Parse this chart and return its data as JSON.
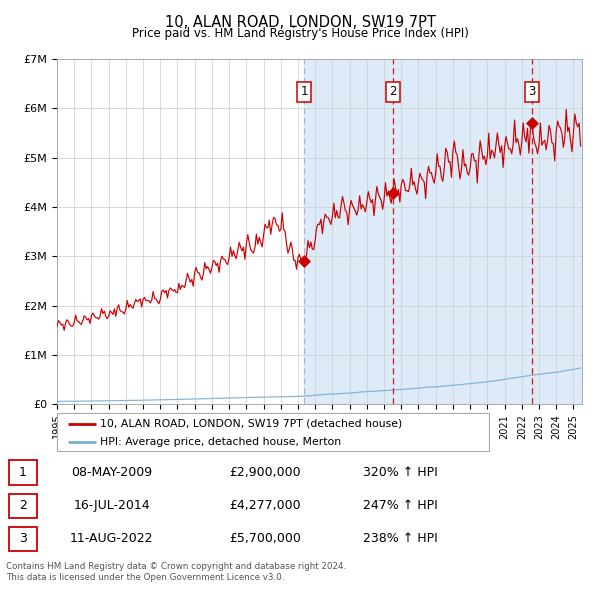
{
  "title": "10, ALAN ROAD, LONDON, SW19 7PT",
  "subtitle": "Price paid vs. HM Land Registry's House Price Index (HPI)",
  "ylabel_ticks": [
    "£0",
    "£1M",
    "£2M",
    "£3M",
    "£4M",
    "£5M",
    "£6M",
    "£7M"
  ],
  "ylim": [
    0,
    7000000
  ],
  "xlim_start": 1995,
  "xlim_end": 2025.5,
  "sale_color": "#cc0000",
  "hpi_color": "#7bafd4",
  "shade_color": "#ddeaf7",
  "grid_color": "#cccccc",
  "bg_color": "#ffffff",
  "transactions": [
    {
      "label": "1",
      "date": 2009.35,
      "price": 2900000,
      "date_str": "08-MAY-2009",
      "pct": "320%",
      "direction": "↑"
    },
    {
      "label": "2",
      "date": 2014.54,
      "price": 4277000,
      "date_str": "16-JUL-2014",
      "pct": "247%",
      "direction": "↑"
    },
    {
      "label": "3",
      "date": 2022.6,
      "price": 5700000,
      "date_str": "11-AUG-2022",
      "pct": "238%",
      "direction": "↑"
    }
  ],
  "legend_line1": "10, ALAN ROAD, LONDON, SW19 7PT (detached house)",
  "legend_line2": "HPI: Average price, detached house, Merton",
  "footer1": "Contains HM Land Registry data © Crown copyright and database right 2024.",
  "footer2": "This data is licensed under the Open Government Licence v3.0."
}
